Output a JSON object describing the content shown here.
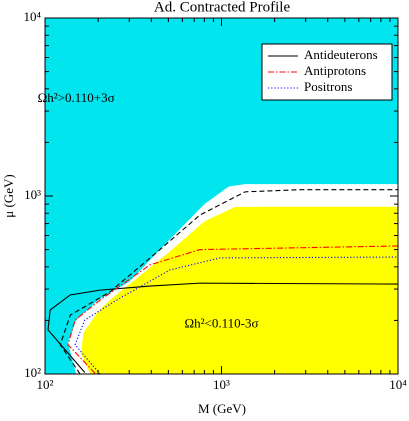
{
  "chart_data": {
    "type": "line",
    "title": "Ad. Contracted Profile",
    "xlabel": "M (GeV)",
    "ylabel": "μ (GeV)",
    "xscale": "log",
    "yscale": "log",
    "xlim": [
      100,
      10000
    ],
    "ylim": [
      100,
      10000
    ],
    "xticks": [
      {
        "value": 100,
        "label": "10²"
      },
      {
        "value": 1000,
        "label": "10³"
      },
      {
        "value": 10000,
        "label": "10⁴"
      }
    ],
    "yticks": [
      {
        "value": 100,
        "label": "10²"
      },
      {
        "value": 1000,
        "label": "10³"
      },
      {
        "value": 10000,
        "label": "10⁴"
      }
    ],
    "background_color": "#00e5ee",
    "regions": [
      {
        "color": "#ffffff",
        "x": [
          150,
          135,
          150,
          200,
          300,
          500,
          800,
          1100,
          1360,
          2000,
          10000
        ],
        "values": [
          100,
          150,
          200,
          260,
          330,
          560,
          900,
          1130,
          1166,
          1166,
          1166
        ]
      },
      {
        "color": "#ffff00",
        "x": [
          180,
          160,
          165,
          200,
          233,
          500,
          800,
          1190,
          2000,
          10000
        ],
        "values": [
          100,
          130,
          170,
          225,
          260,
          480,
          720,
          867,
          870,
          870
        ]
      }
    ],
    "annotations": [
      {
        "text": "Ωh²>0.110+3σ",
        "x": 150,
        "y": 3500
      },
      {
        "text": "Ωh²<0.110-3σ",
        "x": 1000,
        "y": 190
      }
    ],
    "legend": "upper right",
    "series": [
      {
        "name": "Antideuterons",
        "color": "#000000",
        "dash": "solid",
        "x": [
          168,
          104,
          107,
          139,
          205,
          393,
          755,
          10000
        ],
        "values": [
          102,
          177,
          229,
          278,
          296,
          312,
          324,
          320
        ]
      },
      {
        "name": "Antiprotons",
        "color": "#ff0000",
        "dash": "dashdot",
        "x": [
          192,
          135,
          148,
          205,
          393,
          755,
          10000
        ],
        "values": [
          101,
          146,
          201,
          260,
          410,
          500,
          524
        ]
      },
      {
        "name": "Positrons",
        "color": "#0000ff",
        "dash": "dotted",
        "x": [
          205,
          148,
          168,
          266,
          510,
          980,
          10000
        ],
        "values": [
          100,
          146,
          201,
          267,
          384,
          449,
          454
        ]
      },
      {
        "color": "#000000",
        "dash": "dashed",
        "x": [
          158,
          122,
          139,
          233,
          448,
          755,
          1360,
          2780,
          10000
        ],
        "values": [
          100,
          146,
          214,
          289,
          500,
          782,
          1055,
          1085,
          1085
        ]
      }
    ]
  }
}
